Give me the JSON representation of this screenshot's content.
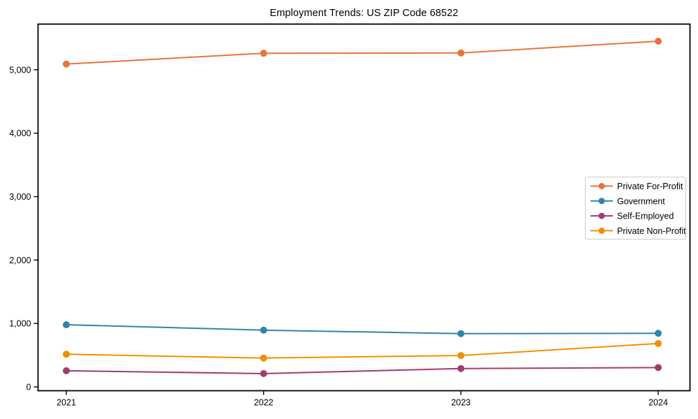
{
  "chart_data": {
    "type": "line",
    "title": "Employment Trends: US ZIP Code 68522",
    "categories": [
      "2021",
      "2022",
      "2023",
      "2024"
    ],
    "series": [
      {
        "name": "Private For-Profit",
        "color": "#E8743B",
        "values": [
          5090,
          5260,
          5265,
          5450
        ]
      },
      {
        "name": "Government",
        "color": "#2E86AB",
        "values": [
          980,
          895,
          840,
          845
        ]
      },
      {
        "name": "Self-Employed",
        "color": "#A23B72",
        "values": [
          255,
          210,
          290,
          305
        ]
      },
      {
        "name": "Private Non-Profit",
        "color": "#F18F01",
        "values": [
          515,
          455,
          495,
          685
        ]
      }
    ],
    "xlabel": "",
    "ylabel": "",
    "y_ticks": [
      0,
      1000,
      2000,
      3000,
      4000,
      5000
    ],
    "y_tick_labels": [
      "0",
      "1,000",
      "2,000",
      "3,000",
      "4,000",
      "5,000"
    ],
    "ylim": [
      -60,
      5720
    ],
    "grid": false,
    "legend_position": "center-right",
    "marker": "circle",
    "line_width": 2,
    "marker_radius": 5,
    "frame_color": "#000000",
    "background": "#ffffff"
  }
}
